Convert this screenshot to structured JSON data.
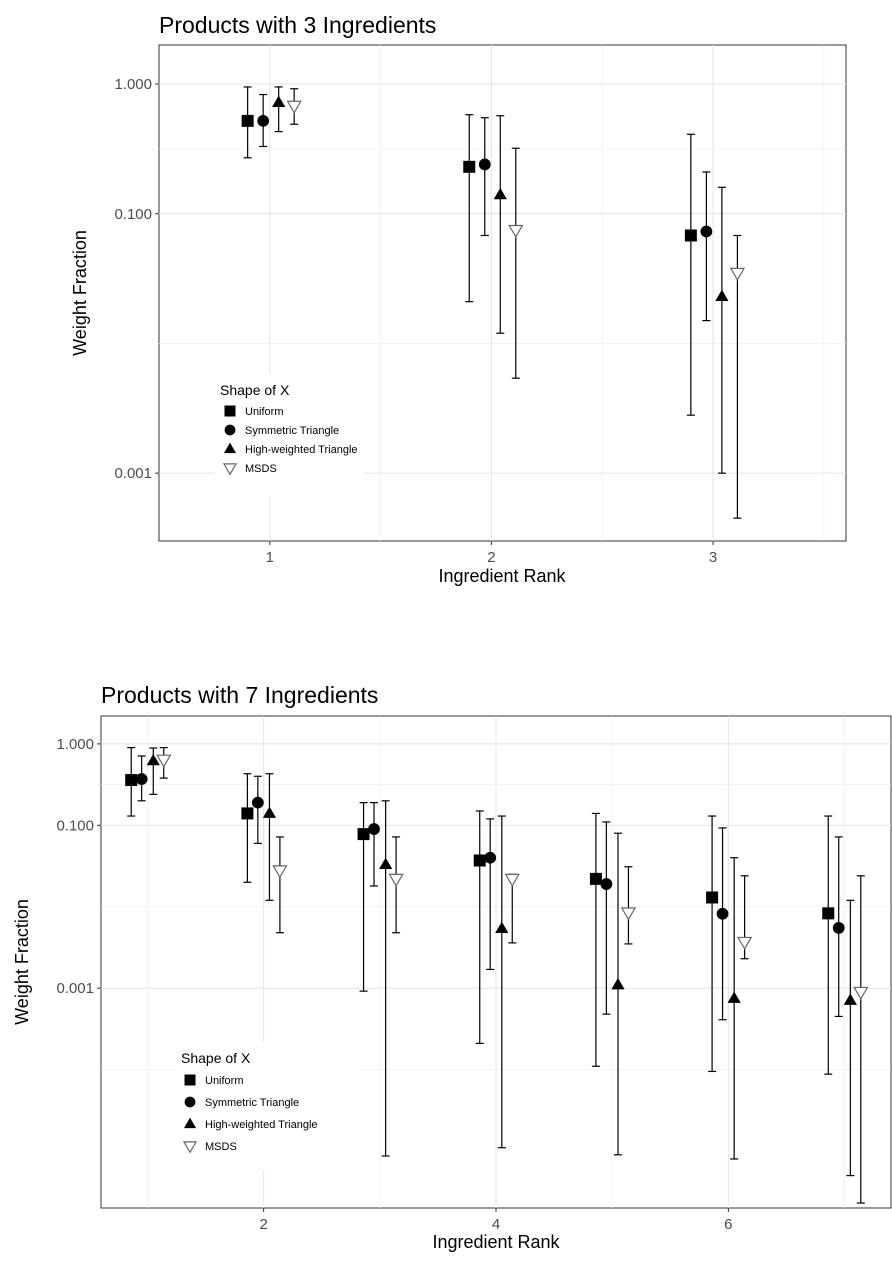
{
  "chart_data": [
    {
      "type": "scatter",
      "title": "Products with 3 Ingredients",
      "xlabel": "Ingredient Rank",
      "ylabel": "Weight Fraction",
      "x_scale": "linear",
      "y_scale": "log10",
      "xlim": [
        0.5,
        3.6
      ],
      "ylim": [
        0.0003,
        2.0
      ],
      "x_ticks": [
        1,
        2,
        3
      ],
      "x_tick_labels": [
        "1",
        "2",
        "3"
      ],
      "y_ticks": [
        0.001,
        0.1,
        1.0
      ],
      "y_tick_labels": [
        "0.001",
        "0.100",
        "1.000"
      ],
      "grid": true,
      "legend_title": "Shape of X",
      "legend_position": "bottom-left",
      "series": [
        {
          "name": "Uniform",
          "marker": "square",
          "x": [
            1,
            2,
            3
          ],
          "y": [
            0.52,
            0.23,
            0.068
          ],
          "lower": [
            0.27,
            0.021,
            0.0028
          ],
          "upper": [
            0.95,
            0.58,
            0.41
          ]
        },
        {
          "name": "Symmetric Triangle",
          "marker": "circle",
          "x": [
            1,
            2,
            3
          ],
          "y": [
            0.52,
            0.24,
            0.073
          ],
          "lower": [
            0.33,
            0.068,
            0.015
          ],
          "upper": [
            0.83,
            0.55,
            0.21
          ]
        },
        {
          "name": "High-weighted Triangle",
          "marker": "triangle-up",
          "x": [
            1,
            2,
            3
          ],
          "y": [
            0.72,
            0.14,
            0.023
          ],
          "lower": [
            0.43,
            0.012,
            0.001
          ],
          "upper": [
            0.95,
            0.57,
            0.16
          ]
        },
        {
          "name": "MSDS",
          "marker": "triangle-down-open",
          "x": [
            1,
            2,
            3
          ],
          "y": [
            0.68,
            0.075,
            0.035
          ],
          "lower": [
            0.49,
            0.0054,
            0.00045
          ],
          "upper": [
            0.92,
            0.32,
            0.068
          ]
        }
      ]
    },
    {
      "type": "scatter",
      "title": "Products with 7 Ingredients",
      "xlabel": "Ingredient Rank",
      "ylabel": "Weight Fraction",
      "x_scale": "linear",
      "y_scale": "log10",
      "xlim": [
        0.6,
        7.4
      ],
      "ylim": [
        2e-06,
        2.2
      ],
      "x_ticks": [
        2,
        4,
        6
      ],
      "x_tick_labels": [
        "2",
        "4",
        "6"
      ],
      "y_ticks": [
        0.001,
        0.1,
        1.0
      ],
      "y_tick_labels": [
        "0.001",
        "0.100",
        "1.000"
      ],
      "grid": true,
      "legend_title": "Shape of X",
      "legend_position": "bottom-left",
      "series": [
        {
          "name": "Uniform",
          "marker": "square",
          "x": [
            1,
            2,
            3,
            4,
            5,
            6,
            7
          ],
          "y": [
            0.36,
            0.14,
            0.078,
            0.037,
            0.022,
            0.013,
            0.0083
          ],
          "lower": [
            0.13,
            0.02,
            0.00092,
            0.00021,
            0.00011,
            9.5e-05,
            8.8e-05
          ],
          "upper": [
            0.9,
            0.43,
            0.19,
            0.15,
            0.14,
            0.13,
            0.13
          ]
        },
        {
          "name": "Symmetric Triangle",
          "marker": "circle",
          "x": [
            1,
            2,
            3,
            4,
            5,
            6,
            7
          ],
          "y": [
            0.37,
            0.19,
            0.09,
            0.04,
            0.019,
            0.0082,
            0.0055
          ],
          "lower": [
            0.2,
            0.06,
            0.018,
            0.0017,
            0.00048,
            0.00041,
            0.00045
          ],
          "upper": [
            0.71,
            0.4,
            0.19,
            0.12,
            0.11,
            0.093,
            0.072
          ]
        },
        {
          "name": "High-weighted Triangle",
          "marker": "triangle-up",
          "x": [
            1,
            2,
            3,
            4,
            5,
            6,
            7
          ],
          "y": [
            0.62,
            0.14,
            0.033,
            0.0054,
            0.0011,
            0.00075,
            0.00071
          ],
          "lower": [
            0.24,
            0.012,
            8.7e-06,
            1.1e-05,
            9e-06,
            8e-06,
            5e-06
          ],
          "upper": [
            0.89,
            0.43,
            0.2,
            0.13,
            0.08,
            0.04,
            0.012
          ]
        },
        {
          "name": "MSDS",
          "marker": "triangle-down-open",
          "x": [
            1,
            2,
            3,
            4,
            5,
            6,
            7
          ],
          "y": [
            0.64,
            0.028,
            0.022,
            0.022,
            0.0085,
            0.0037,
            0.0009
          ],
          "lower": [
            0.38,
            0.0048,
            0.0048,
            0.0036,
            0.0035,
            0.0023,
            2.3e-06
          ],
          "upper": [
            0.9,
            0.072,
            0.072,
            0.025,
            0.031,
            0.024,
            0.024
          ]
        }
      ]
    }
  ]
}
